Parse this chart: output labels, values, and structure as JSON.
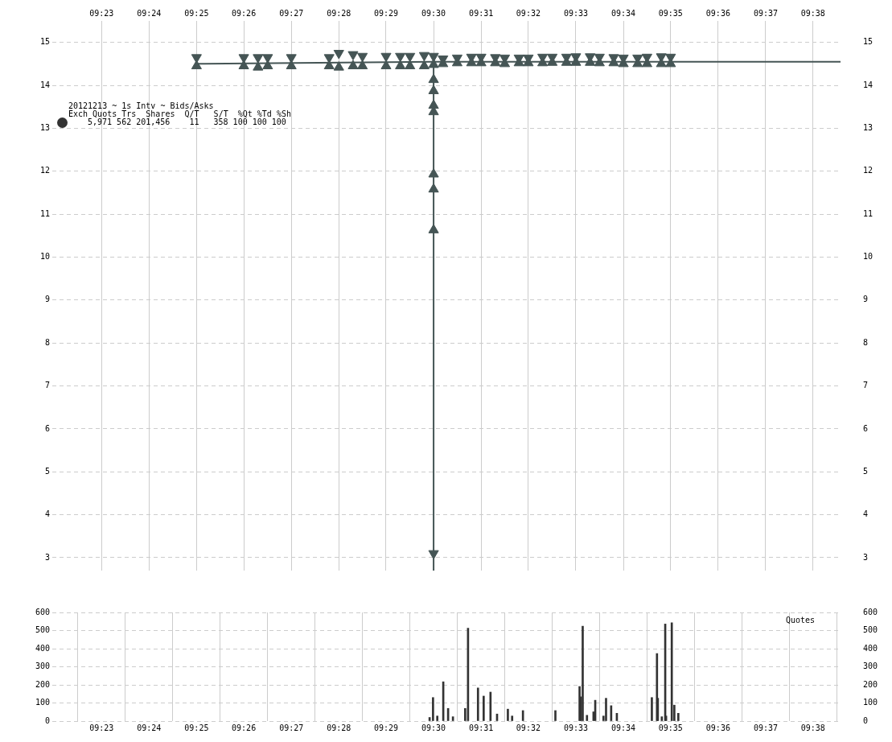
{
  "chart_data": [
    {
      "type": "scatter",
      "title": "20121213 ~ 1s Intv ~ Bids/Asks",
      "annotations": [
        "Exch Quots Trs  Shares  Q/T   S/T  %Qt %Td %Sh",
        "5,971 562 201,456    11   358 100 100 100"
      ],
      "grid": true,
      "xlim": [
        9.366,
        9.643
      ],
      "xticks": [
        {
          "value": 9.3833,
          "label": "09:23"
        },
        {
          "value": 9.4,
          "label": "09:24"
        },
        {
          "value": 9.4167,
          "label": "09:25"
        },
        {
          "value": 9.4333,
          "label": "09:26"
        },
        {
          "value": 9.45,
          "label": "09:27"
        },
        {
          "value": 9.4667,
          "label": "09:28"
        },
        {
          "value": 9.4833,
          "label": "09:29"
        },
        {
          "value": 9.5,
          "label": "09:30"
        },
        {
          "value": 9.5167,
          "label": "09:31"
        },
        {
          "value": 9.5333,
          "label": "09:32"
        },
        {
          "value": 9.55,
          "label": "09:33"
        },
        {
          "value": 9.5667,
          "label": "09:34"
        },
        {
          "value": 9.5833,
          "label": "09:35"
        },
        {
          "value": 9.6,
          "label": "09:36"
        },
        {
          "value": 9.6167,
          "label": "09:37"
        },
        {
          "value": 9.6333,
          "label": "09:38"
        }
      ],
      "ylim": [
        2.7,
        15.5
      ],
      "yticks": [
        3,
        4,
        5,
        6,
        7,
        8,
        9,
        10,
        11,
        12,
        13,
        14,
        15
      ],
      "y2lim": [
        2.7,
        15.5
      ],
      "y2ticks": [
        3,
        4,
        5,
        6,
        7,
        8,
        9,
        10,
        11,
        12,
        13,
        14,
        15
      ],
      "series": [
        {
          "type": "line",
          "color": "#455555",
          "x": [
            9.4167,
            9.5,
            9.643
          ],
          "values": [
            14.5,
            14.55,
            14.55
          ]
        },
        {
          "type": "line",
          "color": "#455555",
          "x": [
            9.5,
            9.5
          ],
          "values": [
            14.55,
            2.7
          ]
        },
        {
          "type": "scatter",
          "marker": "triangle",
          "color": "#455555",
          "x": [
            9.4167,
            9.4333,
            9.4383,
            9.4417,
            9.45,
            9.4633,
            9.4667,
            9.4717,
            9.475,
            9.4833,
            9.4883,
            9.4917,
            9.4967,
            9.5,
            9.5,
            9.5,
            9.5,
            9.5,
            9.5,
            9.5,
            9.5,
            9.5033,
            9.5083,
            9.5133,
            9.5167,
            9.5217,
            9.525,
            9.53,
            9.5333,
            9.5383,
            9.5417,
            9.5467,
            9.55,
            9.555,
            9.5583,
            9.5633,
            9.5667,
            9.5717,
            9.575,
            9.58,
            9.5833
          ],
          "values": [
            14.45,
            14.45,
            14.42,
            14.45,
            14.45,
            14.45,
            14.42,
            14.45,
            14.45,
            14.45,
            14.45,
            14.45,
            14.45,
            14.13,
            13.87,
            13.53,
            13.38,
            11.93,
            11.58,
            10.63,
            14.48,
            14.5,
            14.52,
            14.52,
            14.52,
            14.52,
            14.5,
            14.52,
            14.52,
            14.52,
            14.53,
            14.53,
            14.53,
            14.53,
            14.52,
            14.52,
            14.5,
            14.5,
            14.5,
            14.5,
            14.5
          ]
        },
        {
          "type": "scatter",
          "marker": "triangle",
          "color": "#455555",
          "x": [
            9.4167,
            9.4333,
            9.4383,
            9.4417,
            9.45,
            9.4633,
            9.4667,
            9.4717,
            9.475,
            9.4833,
            9.4883,
            9.4917,
            9.4967,
            9.5,
            9.5,
            9.5033,
            9.5083,
            9.5133,
            9.5167,
            9.5217,
            9.525,
            9.53,
            9.5333,
            9.5383,
            9.5417,
            9.5467,
            9.55,
            9.555,
            9.5583,
            9.5633,
            9.5667,
            9.5717,
            9.575,
            9.58,
            9.5833
          ],
          "values": [
            14.65,
            14.65,
            14.65,
            14.65,
            14.65,
            14.65,
            14.75,
            14.72,
            14.68,
            14.68,
            14.68,
            14.68,
            14.7,
            3.1,
            14.68,
            14.62,
            14.64,
            14.66,
            14.66,
            14.65,
            14.64,
            14.64,
            14.64,
            14.66,
            14.66,
            14.66,
            14.67,
            14.67,
            14.66,
            14.65,
            14.64,
            14.64,
            14.66,
            14.67,
            14.66
          ]
        }
      ]
    },
    {
      "type": "bar",
      "annotations": [
        "Quotes"
      ],
      "grid": true,
      "xlim": [
        9.366,
        9.643
      ],
      "xticks": [
        {
          "value": 9.3833,
          "label": "09:23"
        },
        {
          "value": 9.4,
          "label": "09:24"
        },
        {
          "value": 9.4167,
          "label": "09:25"
        },
        {
          "value": 9.4333,
          "label": "09:26"
        },
        {
          "value": 9.45,
          "label": "09:27"
        },
        {
          "value": 9.4667,
          "label": "09:28"
        },
        {
          "value": 9.4833,
          "label": "09:29"
        },
        {
          "value": 9.5,
          "label": "09:30"
        },
        {
          "value": 9.5167,
          "label": "09:31"
        },
        {
          "value": 9.5333,
          "label": "09:32"
        },
        {
          "value": 9.55,
          "label": "09:33"
        },
        {
          "value": 9.5667,
          "label": "09:34"
        },
        {
          "value": 9.5833,
          "label": "09:35"
        },
        {
          "value": 9.6,
          "label": "09:36"
        },
        {
          "value": 9.6167,
          "label": "09:37"
        },
        {
          "value": 9.6333,
          "label": "09:38"
        }
      ],
      "ylim": [
        0,
        600
      ],
      "yticks": [
        0,
        100,
        200,
        300,
        400,
        500,
        600
      ],
      "y2lim": [
        0,
        600
      ],
      "y2ticks": [
        0,
        100,
        200,
        300,
        400,
        500,
        600
      ],
      "series": [
        {
          "color": "#333333",
          "x": [
            9.4986,
            9.4998,
            9.5013,
            9.5034,
            9.5051,
            9.5068,
            9.5111,
            9.5121,
            9.5156,
            9.5176,
            9.52,
            9.5223,
            9.5261,
            9.5276,
            9.5314,
            9.5428,
            9.5513,
            9.5517,
            9.5524,
            9.5539,
            9.5562,
            9.5568,
            9.5597,
            9.5606,
            9.5624,
            9.5644,
            9.5767,
            9.5785,
            9.5788,
            9.5802,
            9.5814,
            9.5817,
            9.5837,
            9.5846,
            9.586
          ],
          "values": [
            20,
            130,
            28,
            217,
            70,
            24,
            70,
            513,
            183,
            138,
            160,
            39,
            66,
            28,
            58,
            58,
            191,
            134,
            524,
            32,
            51,
            115,
            28,
            126,
            85,
            43,
            130,
            373,
            126,
            24,
            536,
            28,
            543,
            88,
            43
          ]
        }
      ]
    }
  ]
}
